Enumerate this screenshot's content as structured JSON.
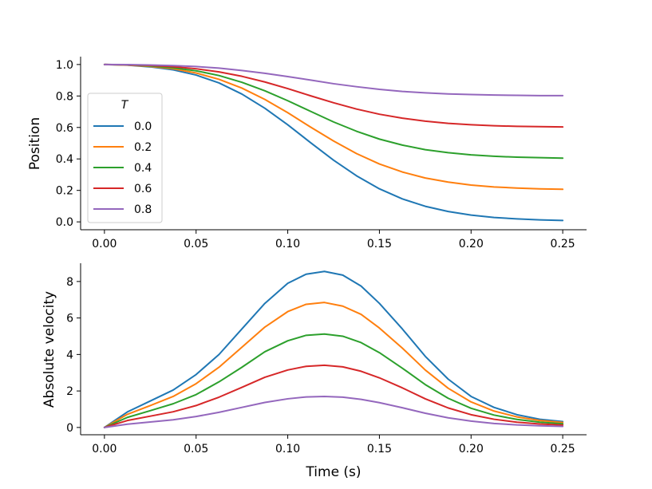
{
  "chart_data": [
    {
      "type": "line",
      "id": "position",
      "ylabel": "Position",
      "xlabel": "",
      "xlim": [
        -0.013,
        0.263
      ],
      "ylim": [
        -0.05,
        1.05
      ],
      "xticks": [
        0.0,
        0.05,
        0.1,
        0.15,
        0.2,
        0.25
      ],
      "xtick_labels": [
        "0.00",
        "0.05",
        "0.10",
        "0.15",
        "0.20",
        "0.25"
      ],
      "yticks": [
        0.0,
        0.2,
        0.4,
        0.6,
        0.8,
        1.0
      ],
      "ytick_labels": [
        "0.0",
        "0.2",
        "0.4",
        "0.6",
        "0.8",
        "1.0"
      ],
      "legend": {
        "title": "T",
        "placement": "center-left",
        "entries": [
          "0.0",
          "0.2",
          "0.4",
          "0.6",
          "0.8"
        ]
      },
      "x": [
        0.0,
        0.0125,
        0.025,
        0.0375,
        0.05,
        0.0625,
        0.075,
        0.0875,
        0.1,
        0.1125,
        0.125,
        0.1375,
        0.15,
        0.1625,
        0.175,
        0.1875,
        0.2,
        0.2125,
        0.225,
        0.2375,
        0.25
      ],
      "series": [
        {
          "name": "0.0",
          "color": "#1f77b4",
          "values": [
            1.0,
            0.996,
            0.985,
            0.966,
            0.933,
            0.883,
            0.812,
            0.722,
            0.617,
            0.503,
            0.392,
            0.293,
            0.21,
            0.146,
            0.099,
            0.066,
            0.043,
            0.028,
            0.019,
            0.013,
            0.009
          ]
        },
        {
          "name": "0.2",
          "color": "#ff7f0e",
          "values": [
            1.0,
            0.997,
            0.988,
            0.973,
            0.946,
            0.906,
            0.85,
            0.778,
            0.694,
            0.602,
            0.514,
            0.434,
            0.368,
            0.317,
            0.279,
            0.253,
            0.234,
            0.222,
            0.215,
            0.21,
            0.207
          ]
        },
        {
          "name": "0.4",
          "color": "#2ca02c",
          "values": [
            1.0,
            0.998,
            0.991,
            0.979,
            0.96,
            0.93,
            0.887,
            0.833,
            0.77,
            0.702,
            0.635,
            0.576,
            0.526,
            0.488,
            0.459,
            0.44,
            0.426,
            0.417,
            0.411,
            0.408,
            0.405
          ]
        },
        {
          "name": "0.6",
          "color": "#d62728",
          "values": [
            1.0,
            0.998,
            0.994,
            0.986,
            0.973,
            0.953,
            0.925,
            0.889,
            0.847,
            0.801,
            0.757,
            0.717,
            0.684,
            0.659,
            0.64,
            0.626,
            0.617,
            0.611,
            0.607,
            0.605,
            0.603
          ]
        },
        {
          "name": "0.8",
          "color": "#9467bd",
          "values": [
            1.0,
            0.999,
            0.997,
            0.993,
            0.987,
            0.977,
            0.962,
            0.944,
            0.923,
            0.901,
            0.878,
            0.859,
            0.842,
            0.829,
            0.82,
            0.813,
            0.809,
            0.806,
            0.804,
            0.802,
            0.802
          ]
        }
      ]
    },
    {
      "type": "line",
      "id": "velocity",
      "ylabel": "Absolute velocity",
      "xlabel": "Time (s)",
      "xlim": [
        -0.013,
        0.263
      ],
      "ylim": [
        -0.4,
        9.0
      ],
      "xticks": [
        0.0,
        0.05,
        0.1,
        0.15,
        0.2,
        0.25
      ],
      "xtick_labels": [
        "0.00",
        "0.05",
        "0.10",
        "0.15",
        "0.20",
        "0.25"
      ],
      "yticks": [
        0,
        2,
        4,
        6,
        8
      ],
      "ytick_labels": [
        "0",
        "2",
        "4",
        "6",
        "8"
      ],
      "x": [
        0.0,
        0.0125,
        0.025,
        0.0375,
        0.05,
        0.0625,
        0.075,
        0.0875,
        0.1,
        0.11,
        0.12,
        0.13,
        0.14,
        0.15,
        0.1625,
        0.175,
        0.1875,
        0.2,
        0.2125,
        0.225,
        0.2375,
        0.25
      ],
      "series": [
        {
          "name": "0.0",
          "color": "#1f77b4",
          "values": [
            0.0,
            0.85,
            1.45,
            2.05,
            2.9,
            4.0,
            5.4,
            6.8,
            7.9,
            8.4,
            8.55,
            8.35,
            7.75,
            6.8,
            5.4,
            3.9,
            2.65,
            1.7,
            1.1,
            0.7,
            0.45,
            0.32
          ]
        },
        {
          "name": "0.2",
          "color": "#ff7f0e",
          "values": [
            0.0,
            0.72,
            1.2,
            1.7,
            2.4,
            3.3,
            4.4,
            5.5,
            6.35,
            6.75,
            6.85,
            6.65,
            6.2,
            5.45,
            4.35,
            3.15,
            2.15,
            1.4,
            0.9,
            0.58,
            0.38,
            0.27
          ]
        },
        {
          "name": "0.4",
          "color": "#2ca02c",
          "values": [
            0.0,
            0.55,
            0.92,
            1.3,
            1.8,
            2.5,
            3.3,
            4.15,
            4.75,
            5.05,
            5.12,
            5.0,
            4.65,
            4.1,
            3.25,
            2.35,
            1.6,
            1.05,
            0.68,
            0.44,
            0.29,
            0.2
          ]
        },
        {
          "name": "0.6",
          "color": "#d62728",
          "values": [
            0.0,
            0.38,
            0.62,
            0.86,
            1.2,
            1.66,
            2.2,
            2.75,
            3.15,
            3.35,
            3.41,
            3.32,
            3.08,
            2.72,
            2.17,
            1.57,
            1.07,
            0.7,
            0.45,
            0.29,
            0.19,
            0.13
          ]
        },
        {
          "name": "0.8",
          "color": "#9467bd",
          "values": [
            0.0,
            0.18,
            0.3,
            0.42,
            0.6,
            0.83,
            1.1,
            1.37,
            1.57,
            1.67,
            1.7,
            1.66,
            1.54,
            1.36,
            1.08,
            0.78,
            0.53,
            0.35,
            0.22,
            0.14,
            0.09,
            0.06
          ]
        }
      ]
    }
  ]
}
